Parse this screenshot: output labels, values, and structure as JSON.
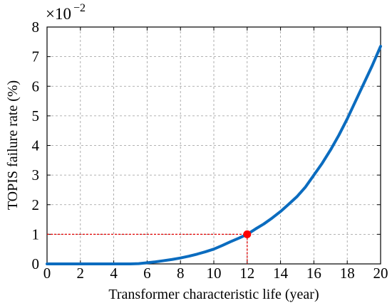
{
  "chart_data": {
    "type": "line",
    "title": "",
    "xlabel": "Transformer characteristic life (year)",
    "ylabel": "TOPIS failure rate (%)",
    "y_multiplier": {
      "base": "×10",
      "exponent": "−2"
    },
    "xlim": [
      0,
      20
    ],
    "ylim": [
      0,
      8
    ],
    "x_ticks": [
      0,
      2,
      4,
      6,
      8,
      10,
      12,
      14,
      16,
      18,
      20
    ],
    "y_ticks": [
      0,
      1,
      2,
      3,
      4,
      5,
      6,
      7,
      8
    ],
    "x_tick_labels": [
      "0",
      "2",
      "4",
      "6",
      "8",
      "10",
      "12",
      "14",
      "16",
      "18",
      "20"
    ],
    "y_tick_labels": [
      "0",
      "1",
      "2",
      "3",
      "4",
      "5",
      "6",
      "7",
      "8"
    ],
    "grid": true,
    "colors": {
      "line": "#0b6cbf",
      "marker": "#ff0000",
      "guide": "#e00000",
      "grid": "#9a9a9a"
    },
    "series": [
      {
        "x": [
          0,
          1,
          2,
          3,
          4,
          5,
          5.5,
          6,
          6.5,
          7,
          7.5,
          8,
          8.5,
          9,
          9.5,
          10,
          10.5,
          11,
          11.5,
          12,
          12.5,
          13,
          13.5,
          14,
          14.5,
          15,
          15.5,
          16,
          16.5,
          17,
          17.5,
          18,
          18.5,
          19,
          19.5,
          20
        ],
        "y": [
          0,
          0,
          0,
          0,
          0,
          0,
          0.01,
          0.04,
          0.07,
          0.11,
          0.15,
          0.2,
          0.26,
          0.33,
          0.41,
          0.5,
          0.62,
          0.75,
          0.87,
          1.0,
          1.18,
          1.35,
          1.55,
          1.77,
          2.02,
          2.28,
          2.6,
          3.0,
          3.4,
          3.85,
          4.35,
          4.9,
          5.5,
          6.1,
          6.7,
          7.35
        ]
      }
    ],
    "highlight_point": {
      "x": 12,
      "y": 1.0
    }
  }
}
